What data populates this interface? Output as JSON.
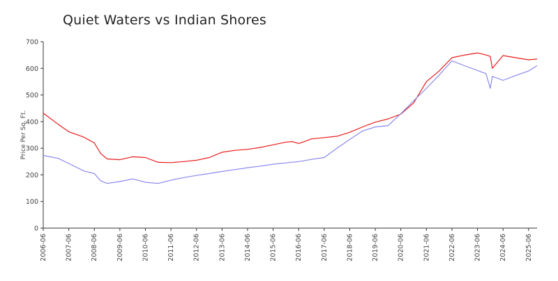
{
  "chart_data": {
    "type": "line",
    "title": "Quiet Waters vs Indian Shores",
    "xlabel": "",
    "ylabel": "Price Per Sq. Ft.",
    "ylim": [
      0,
      700
    ],
    "yticks": [
      0,
      100,
      200,
      300,
      400,
      500,
      600,
      700
    ],
    "xticks": [
      "2006-06",
      "2007-06",
      "2008-06",
      "2009-06",
      "2010-06",
      "2011-06",
      "2012-06",
      "2013-06",
      "2014-06",
      "2015-06",
      "2016-06",
      "2017-06",
      "2018-06",
      "2019-06",
      "2020-06",
      "2021-06",
      "2022-06",
      "2023-06",
      "2024-06",
      "2025-06"
    ],
    "grid": false,
    "legend": "none",
    "series": [
      {
        "color": "#e8191b",
        "x": [
          "2006-06",
          "2007-01",
          "2007-06",
          "2008-01",
          "2008-06",
          "2008-09",
          "2008-12",
          "2009-06",
          "2009-12",
          "2010-06",
          "2010-12",
          "2011-06",
          "2011-12",
          "2012-06",
          "2012-12",
          "2013-06",
          "2013-12",
          "2014-06",
          "2014-12",
          "2015-06",
          "2015-12",
          "2016-03",
          "2016-06",
          "2016-09",
          "2016-12",
          "2017-06",
          "2017-12",
          "2018-06",
          "2018-12",
          "2019-06",
          "2019-12",
          "2020-06",
          "2020-12",
          "2021-06",
          "2021-12",
          "2022-06",
          "2022-12",
          "2023-06",
          "2023-10",
          "2023-12",
          "2024-01",
          "2024-06",
          "2024-12",
          "2025-06",
          "2025-10"
        ],
        "values": [
          432,
          390,
          362,
          342,
          320,
          280,
          260,
          257,
          268,
          265,
          247,
          246,
          250,
          255,
          265,
          285,
          292,
          296,
          303,
          313,
          323,
          325,
          318,
          326,
          335,
          340,
          345,
          360,
          380,
          398,
          410,
          428,
          470,
          550,
          590,
          640,
          650,
          658,
          650,
          645,
          600,
          648,
          640,
          632,
          635
        ]
      },
      {
        "color": "#8888ee",
        "x": [
          "2006-06",
          "2007-01",
          "2007-06",
          "2008-01",
          "2008-06",
          "2008-09",
          "2008-12",
          "2009-06",
          "2009-12",
          "2010-06",
          "2010-12",
          "2011-06",
          "2011-12",
          "2012-06",
          "2012-12",
          "2013-06",
          "2013-12",
          "2014-06",
          "2014-12",
          "2015-06",
          "2015-12",
          "2016-06",
          "2016-12",
          "2017-06",
          "2017-12",
          "2018-06",
          "2018-12",
          "2019-06",
          "2019-12",
          "2020-06",
          "2020-12",
          "2021-06",
          "2021-12",
          "2022-06",
          "2022-12",
          "2023-06",
          "2023-10",
          "2023-12",
          "2024-01",
          "2024-06",
          "2024-12",
          "2025-06",
          "2025-10"
        ],
        "values": [
          273,
          262,
          243,
          215,
          205,
          178,
          168,
          175,
          185,
          172,
          168,
          180,
          190,
          198,
          205,
          213,
          220,
          227,
          233,
          240,
          245,
          250,
          258,
          265,
          300,
          333,
          365,
          380,
          385,
          430,
          478,
          525,
          575,
          628,
          610,
          592,
          580,
          525,
          570,
          555,
          573,
          590,
          610
        ]
      }
    ]
  }
}
